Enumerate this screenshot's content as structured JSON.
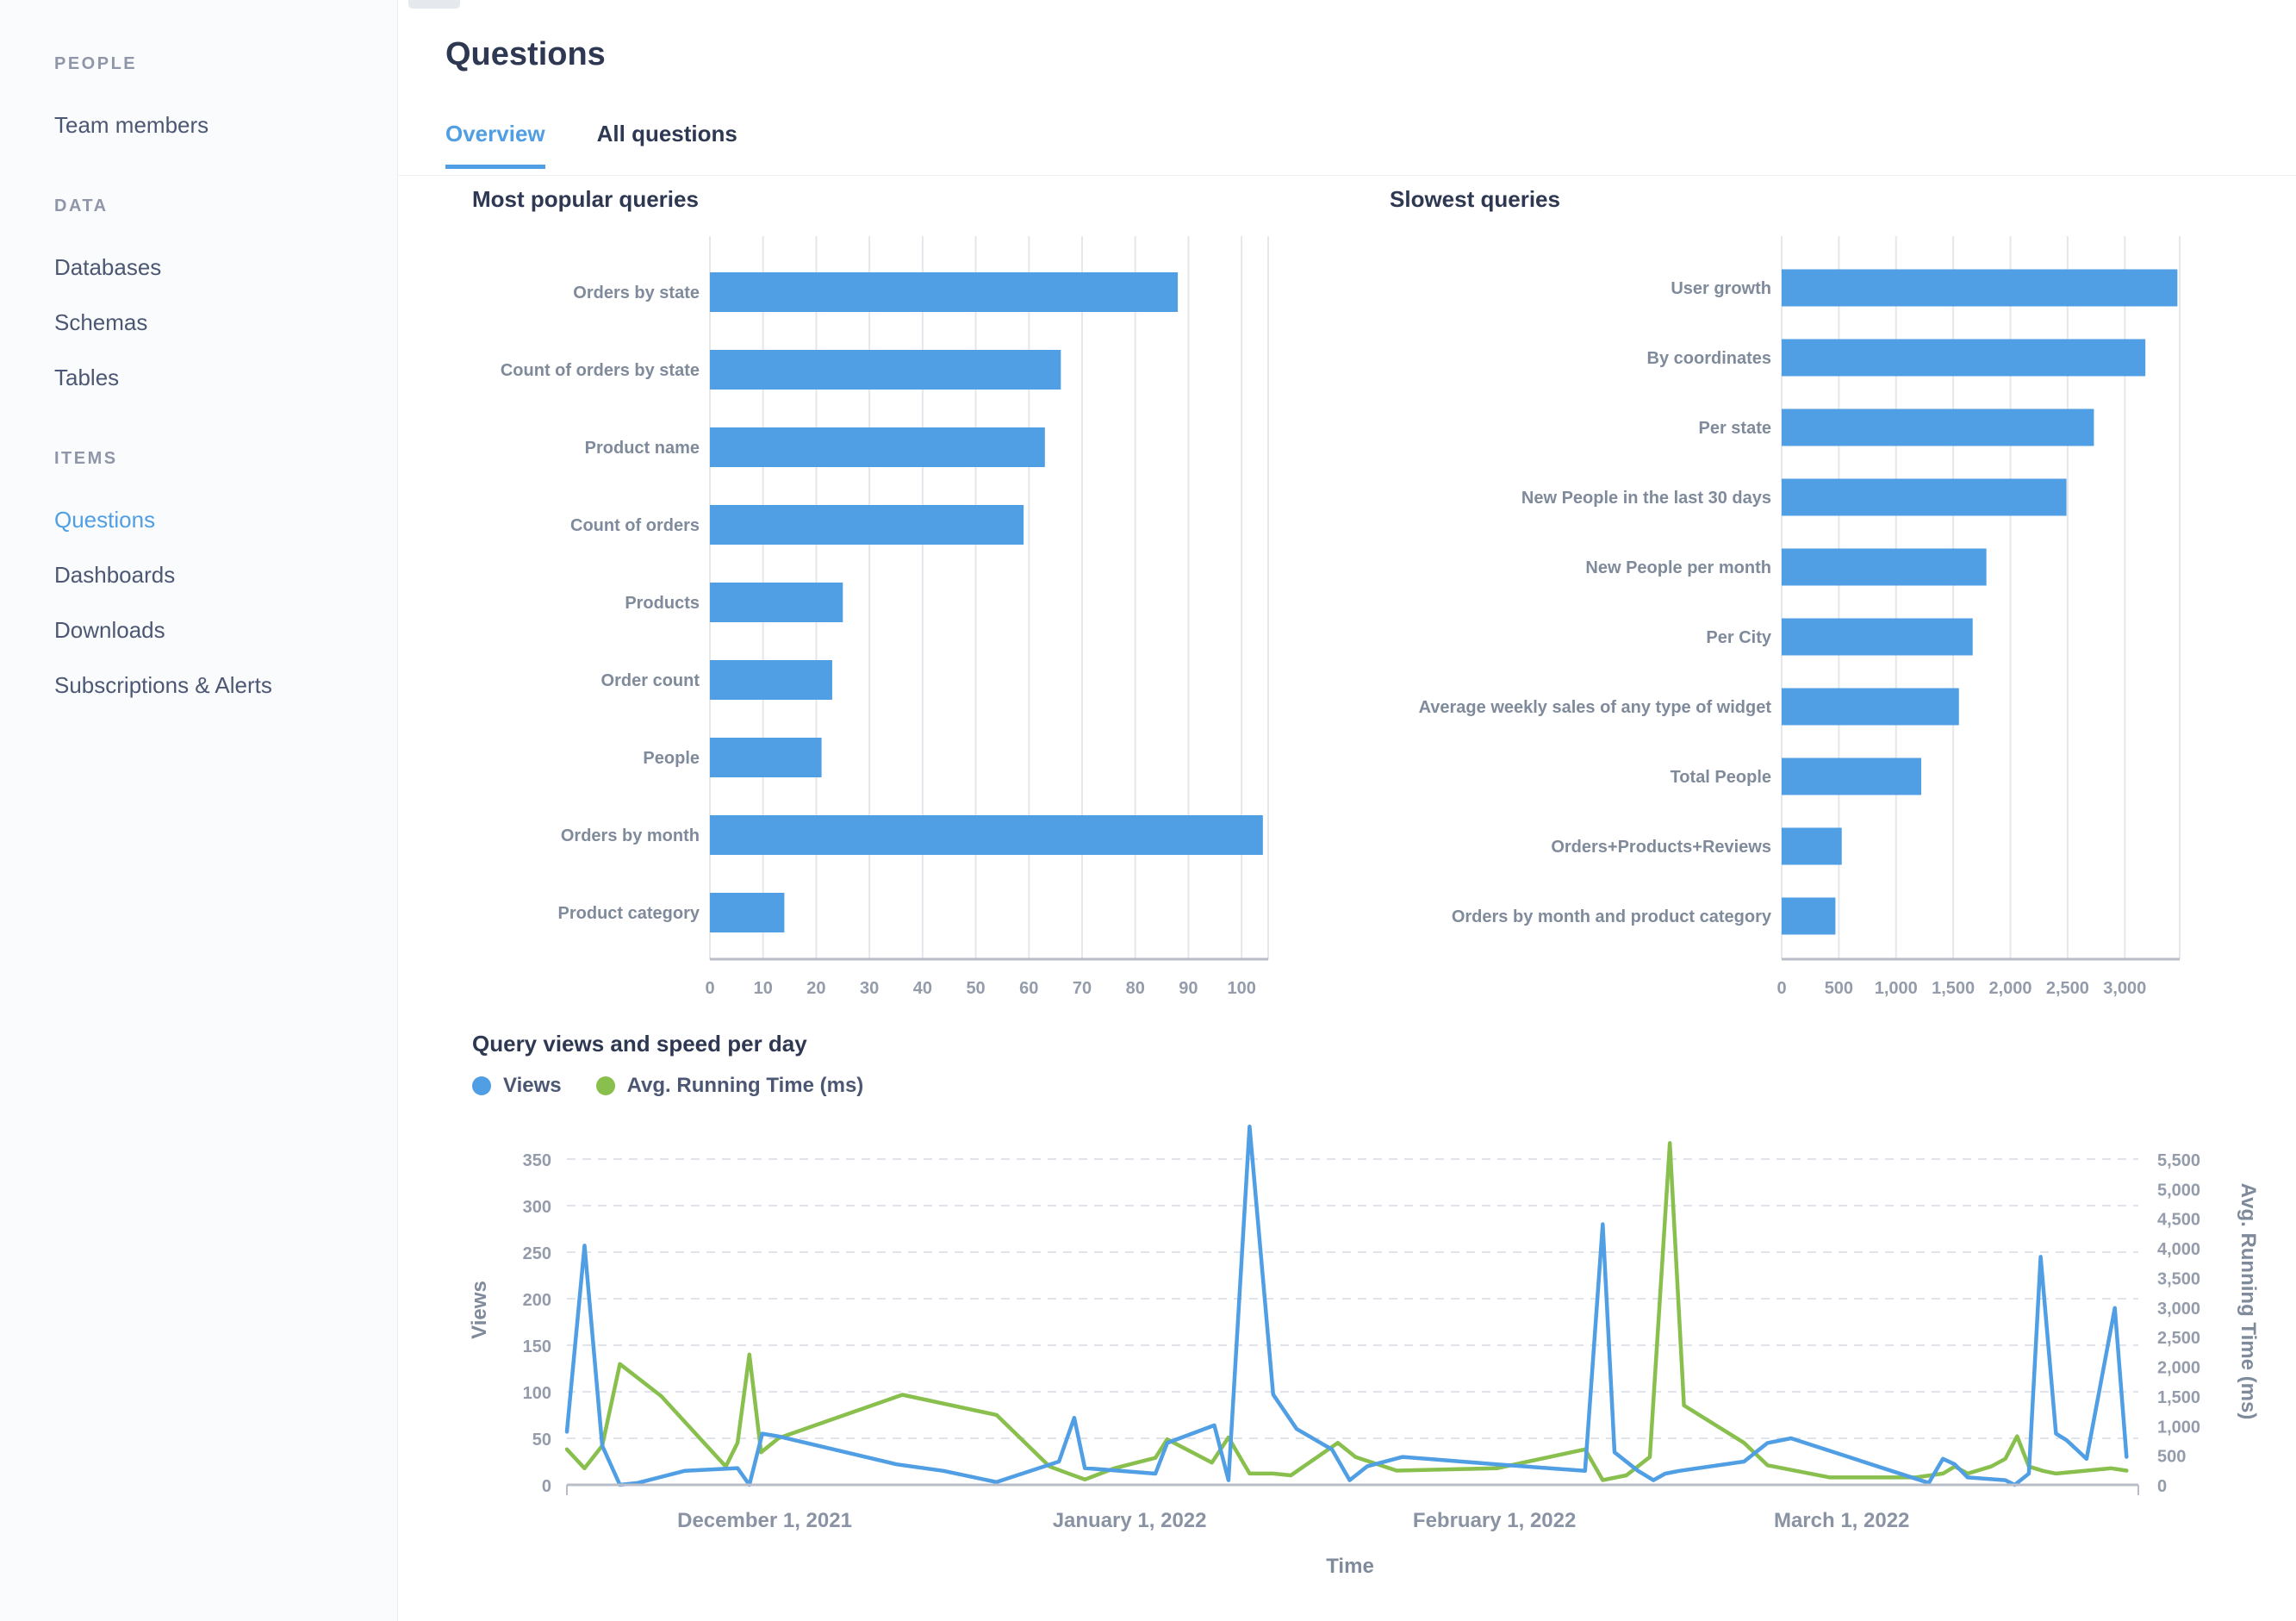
{
  "app": {
    "accent_color": "#509ee3",
    "green_color": "#88bf4d"
  },
  "sidebar": {
    "sections": [
      {
        "header": "PEOPLE",
        "items": [
          {
            "label": "Team members",
            "active": false
          }
        ]
      },
      {
        "header": "DATA",
        "items": [
          {
            "label": "Databases",
            "active": false
          },
          {
            "label": "Schemas",
            "active": false
          },
          {
            "label": "Tables",
            "active": false
          }
        ]
      },
      {
        "header": "ITEMS",
        "items": [
          {
            "label": "Questions",
            "active": true
          },
          {
            "label": "Dashboards",
            "active": false
          },
          {
            "label": "Downloads",
            "active": false
          },
          {
            "label": "Subscriptions & Alerts",
            "active": false
          }
        ]
      }
    ]
  },
  "header": {
    "title": "Questions",
    "tabs": [
      {
        "label": "Overview",
        "active": true
      },
      {
        "label": "All questions",
        "active": false
      }
    ]
  },
  "chart_data": [
    {
      "type": "bar",
      "orientation": "horizontal",
      "title": "Most popular queries",
      "categories": [
        "Orders by state",
        "Count of orders by state",
        "Product name",
        "Count of orders",
        "Products",
        "Order count",
        "People",
        "Orders by month",
        "Product category"
      ],
      "values": [
        88,
        66,
        63,
        59,
        25,
        23,
        21,
        104,
        14
      ],
      "xticks": [
        0,
        10,
        20,
        30,
        40,
        50,
        60,
        70,
        80,
        90,
        100
      ],
      "xlim": [
        0,
        105
      ],
      "bar_color": "#509ee3",
      "grid": true
    },
    {
      "type": "bar",
      "orientation": "horizontal",
      "title": "Slowest queries",
      "categories": [
        "User growth",
        "By coordinates",
        "Per state",
        "New People in the last 30 days",
        "New People per month",
        "Per City",
        "Average weekly sales of any type of widget",
        "Total People",
        "Orders+Products+Reviews",
        "Orders by month and product category"
      ],
      "values": [
        3460,
        3180,
        2730,
        2490,
        1790,
        1670,
        1550,
        1220,
        525,
        470
      ],
      "xticks": [
        0,
        500,
        1000,
        1500,
        2000,
        2500,
        3000
      ],
      "xlim": [
        0,
        3480
      ],
      "bar_color": "#509ee3",
      "grid": true
    },
    {
      "type": "line",
      "title": "Query views and speed per day",
      "xlabel": "Time",
      "x_tick_labels": [
        "December 1, 2021",
        "January 1, 2022",
        "February 1, 2022",
        "March 1, 2022"
      ],
      "x_tick_days": [
        16.8,
        47.8,
        78.8,
        108.3
      ],
      "x_domain_days": [
        0,
        133.5
      ],
      "left_axis": {
        "label": "Views",
        "ticks": [
          0,
          50,
          100,
          150,
          200,
          250,
          300,
          350
        ],
        "max": 350
      },
      "right_axis": {
        "label": "Avg. Running Time (ms)",
        "ticks": [
          0,
          500,
          1000,
          1500,
          2000,
          2500,
          3000,
          3500,
          4000,
          4500,
          5000,
          5500
        ],
        "max": 5500
      },
      "grid": "dashed-horizontal",
      "legend_position": "top-left",
      "series": [
        {
          "name": "Views",
          "axis": "left",
          "color": "#509ee3",
          "points": [
            [
              0,
              57
            ],
            [
              1.5,
              257
            ],
            [
              3,
              42
            ],
            [
              4.5,
              0
            ],
            [
              6,
              2
            ],
            [
              10,
              15
            ],
            [
              14.5,
              18
            ],
            [
              15.5,
              0
            ],
            [
              16.6,
              55
            ],
            [
              18,
              52
            ],
            [
              28,
              22
            ],
            [
              32,
              15
            ],
            [
              36.5,
              3
            ],
            [
              41.8,
              25
            ],
            [
              43.1,
              72
            ],
            [
              44,
              18
            ],
            [
              47,
              15
            ],
            [
              50,
              12
            ],
            [
              51,
              45
            ],
            [
              55,
              64
            ],
            [
              56.2,
              5
            ],
            [
              58,
              385
            ],
            [
              60,
              97
            ],
            [
              62,
              60
            ],
            [
              65,
              38
            ],
            [
              66.5,
              5
            ],
            [
              68,
              20
            ],
            [
              71,
              30
            ],
            [
              79,
              22
            ],
            [
              86.5,
              15
            ],
            [
              88,
              280
            ],
            [
              89,
              35
            ],
            [
              91,
              15
            ],
            [
              92.3,
              5
            ],
            [
              93.3,
              12
            ],
            [
              94.5,
              15
            ],
            [
              100,
              25
            ],
            [
              102,
              45
            ],
            [
              104,
              50
            ],
            [
              115.7,
              2
            ],
            [
              116.9,
              28
            ],
            [
              117.9,
              22
            ],
            [
              119,
              8
            ],
            [
              122.2,
              5
            ],
            [
              123,
              0
            ],
            [
              124.2,
              12
            ],
            [
              125.2,
              245
            ],
            [
              126.5,
              55
            ],
            [
              127.4,
              48
            ],
            [
              129.1,
              28
            ],
            [
              131.5,
              190
            ],
            [
              132.5,
              30
            ]
          ]
        },
        {
          "name": "Avg. Running Time (ms)",
          "axis": "right",
          "color": "#88bf4d",
          "points": [
            [
              0,
              600
            ],
            [
              1.5,
              280
            ],
            [
              3,
              660
            ],
            [
              4.5,
              2040
            ],
            [
              8,
              1500
            ],
            [
              13.5,
              310
            ],
            [
              14.5,
              710
            ],
            [
              15.5,
              2200
            ],
            [
              16.5,
              550
            ],
            [
              18,
              790
            ],
            [
              28.5,
              1520
            ],
            [
              36.5,
              1180
            ],
            [
              41,
              310
            ],
            [
              42.5,
              200
            ],
            [
              44,
              90
            ],
            [
              46.5,
              280
            ],
            [
              50,
              455
            ],
            [
              51,
              770
            ],
            [
              54.8,
              375
            ],
            [
              56.2,
              800
            ],
            [
              58,
              190
            ],
            [
              60,
              190
            ],
            [
              61.5,
              160
            ],
            [
              65.5,
              710
            ],
            [
              67,
              470
            ],
            [
              70.5,
              240
            ],
            [
              79,
              280
            ],
            [
              86.5,
              600
            ],
            [
              88,
              80
            ],
            [
              90,
              160
            ],
            [
              92,
              470
            ],
            [
              93.7,
              5770
            ],
            [
              94.9,
              1340
            ],
            [
              100,
              710
            ],
            [
              102,
              330
            ],
            [
              107.3,
              125
            ],
            [
              114.6,
              125
            ],
            [
              116.9,
              190
            ],
            [
              117.9,
              310
            ],
            [
              119,
              190
            ],
            [
              121,
              310
            ],
            [
              122.2,
              440
            ],
            [
              123.2,
              820
            ],
            [
              124.2,
              310
            ],
            [
              125.4,
              235
            ],
            [
              126.5,
              190
            ],
            [
              131.2,
              280
            ],
            [
              132.5,
              240
            ]
          ]
        }
      ]
    }
  ]
}
